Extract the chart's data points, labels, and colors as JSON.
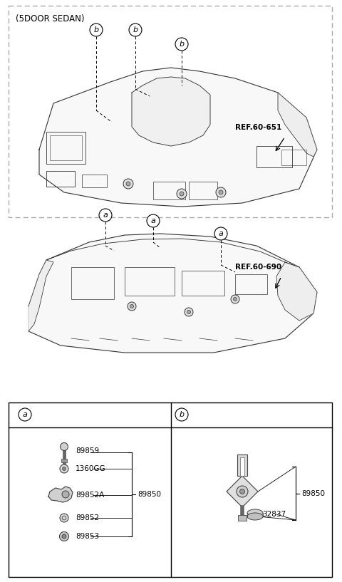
{
  "bg_color": "#ffffff",
  "fig_width": 4.8,
  "fig_height": 8.17,
  "dpi": 100,
  "ref_60_651": "REF.60-651",
  "ref_60_690": "REF.60-690",
  "title_5door": "(5DOOR SEDAN)"
}
